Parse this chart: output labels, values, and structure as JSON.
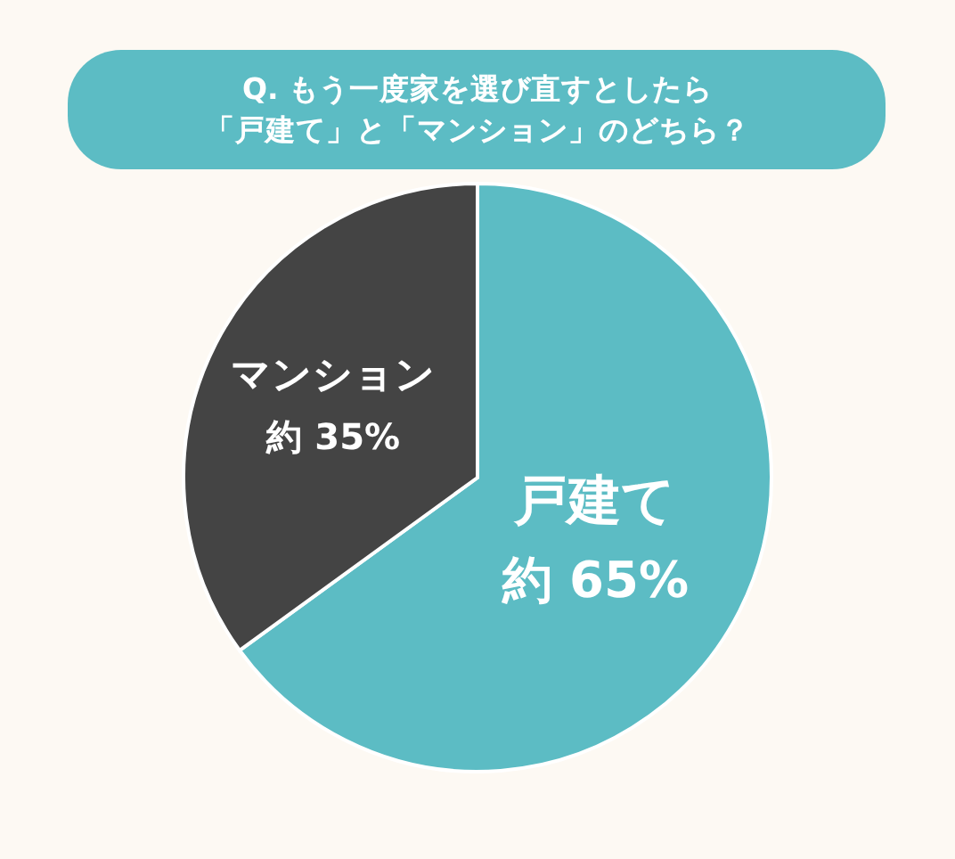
{
  "chart_data": {
    "type": "pie",
    "title": "Q. もう一度家を選び直すとしたら",
    "subtitle": "「戸建て」と「マンション」のどちら？",
    "categories": [
      "戸建て",
      "マンション"
    ],
    "values": [
      65,
      35
    ],
    "value_labels": [
      "約 65%",
      "約 35%"
    ],
    "colors": [
      "#5cbcc4",
      "#444444"
    ]
  }
}
